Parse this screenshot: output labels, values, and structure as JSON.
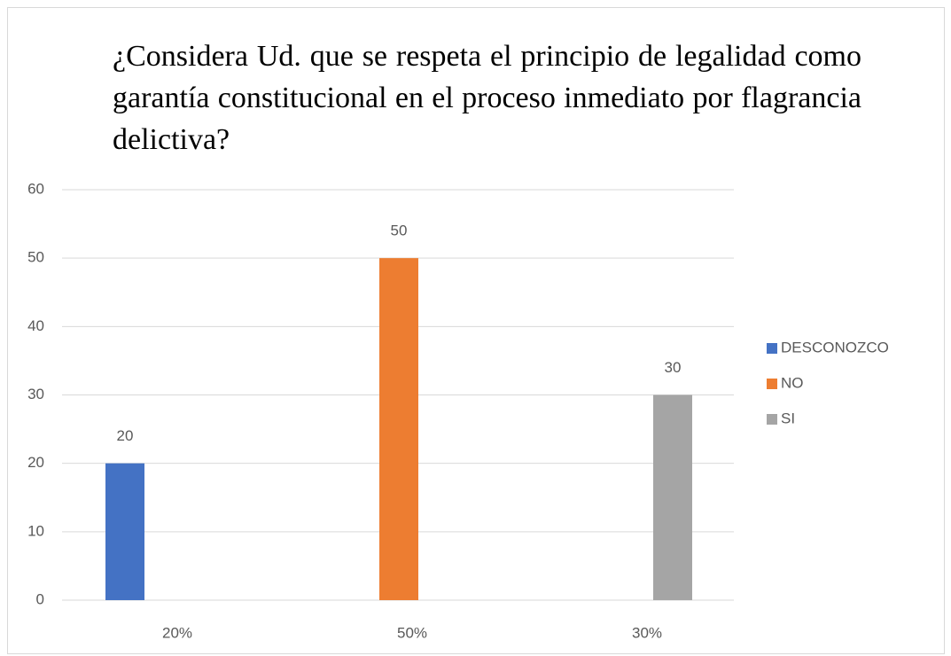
{
  "chart_data": {
    "type": "bar",
    "title": "¿Considera Ud. que se respeta el principio de legalidad como garantía constitucional en el proceso inmediato por flagrancia delictiva?",
    "categories": [
      "20%",
      "50%",
      "30%"
    ],
    "series": [
      {
        "name": "DESCONOZCO",
        "color": "#4472c4",
        "values": [
          20,
          null,
          null
        ]
      },
      {
        "name": "NO",
        "color": "#ed7d31",
        "values": [
          null,
          50,
          null
        ]
      },
      {
        "name": "SI",
        "color": "#a5a5a5",
        "values": [
          null,
          null,
          30
        ]
      }
    ],
    "ylim": [
      0,
      60
    ],
    "yticks": [
      0,
      10,
      20,
      30,
      40,
      50,
      60
    ],
    "grid": true,
    "legend": "right",
    "data_labels": true
  }
}
